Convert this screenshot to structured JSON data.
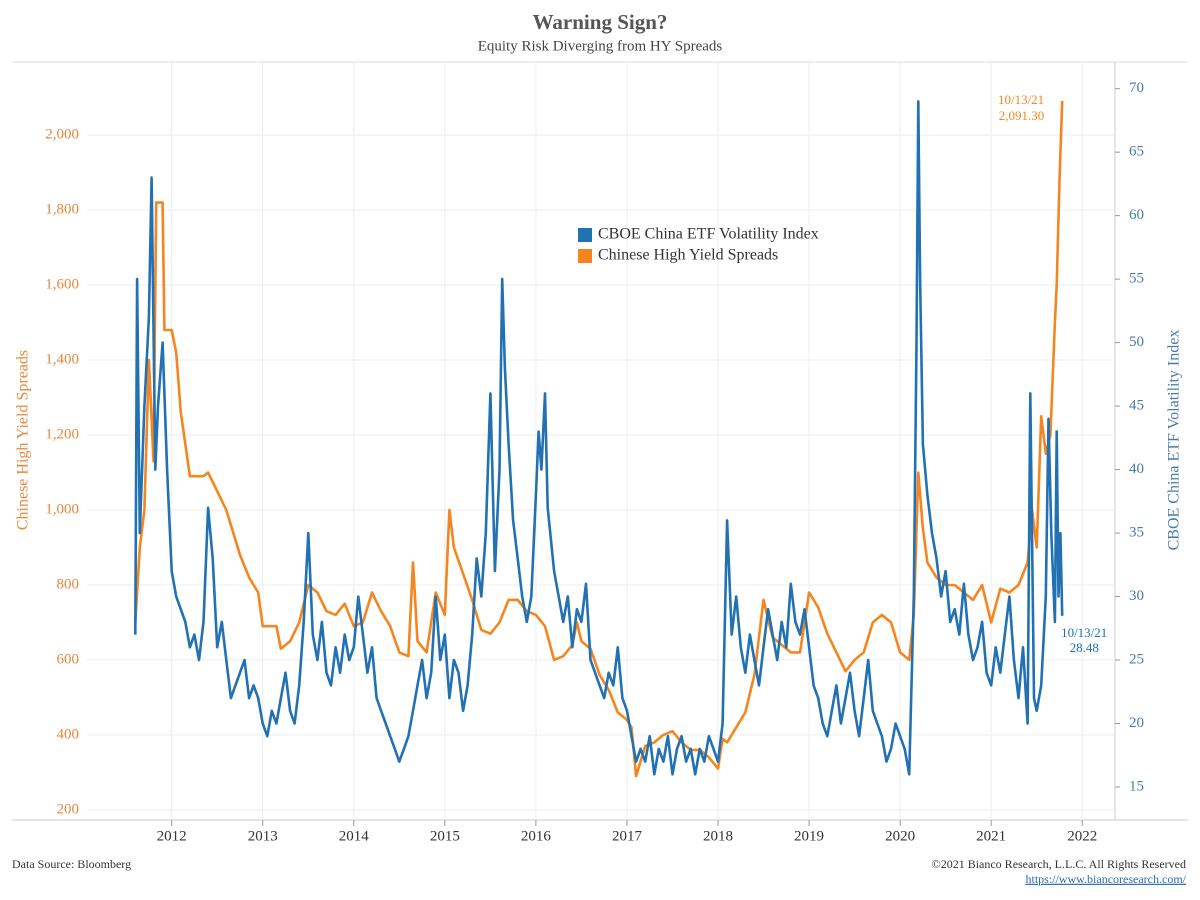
{
  "chart_data": {
    "type": "line",
    "title": "Warning Sign?",
    "subtitle": "Equity Risk Diverging from HY Spreads",
    "ylabel": "Chinese High Yield Spreads",
    "y2label": "CBOE China ETF Volatility Index",
    "xlim": [
      2011.07,
      2022.36
    ],
    "xticks": [
      2012,
      2013,
      2014,
      2015,
      2016,
      2017,
      2018,
      2019,
      2020,
      2021,
      2022
    ],
    "ylim": [
      173,
      2195
    ],
    "yticks": [
      200,
      400,
      600,
      800,
      {
        "value": 1000,
        "label": "1,000"
      },
      {
        "value": 1200,
        "label": "1,200"
      },
      {
        "value": 1400,
        "label": "1,400"
      },
      {
        "value": 1600,
        "label": "1,600"
      },
      {
        "value": 1800,
        "label": "1,800"
      },
      {
        "value": 2000,
        "label": "2,000"
      }
    ],
    "y2lim": [
      12.4,
      72.1
    ],
    "y2ticks": [
      15,
      20,
      25,
      30,
      35,
      40,
      45,
      50,
      55,
      60,
      65,
      70
    ],
    "grid": true,
    "legend": "top-center",
    "series": [
      {
        "name": "CBOE China ETF Volatility Index",
        "color": "#2271b3",
        "axis": "y2",
        "x": [
          2011.6,
          2011.62,
          2011.65,
          2011.7,
          2011.75,
          2011.78,
          2011.82,
          2011.85,
          2011.9,
          2011.95,
          2012.0,
          2012.05,
          2012.1,
          2012.15,
          2012.2,
          2012.25,
          2012.3,
          2012.35,
          2012.4,
          2012.45,
          2012.5,
          2012.55,
          2012.6,
          2012.65,
          2012.7,
          2012.75,
          2012.8,
          2012.85,
          2012.9,
          2012.95,
          2013.0,
          2013.05,
          2013.1,
          2013.15,
          2013.2,
          2013.25,
          2013.3,
          2013.35,
          2013.4,
          2013.45,
          2013.5,
          2013.55,
          2013.6,
          2013.65,
          2013.7,
          2013.75,
          2013.8,
          2013.85,
          2013.9,
          2013.95,
          2014.0,
          2014.05,
          2014.1,
          2014.15,
          2014.2,
          2014.25,
          2014.3,
          2014.35,
          2014.4,
          2014.45,
          2014.5,
          2014.55,
          2014.6,
          2014.65,
          2014.7,
          2014.75,
          2014.8,
          2014.85,
          2014.9,
          2014.95,
          2015.0,
          2015.05,
          2015.1,
          2015.15,
          2015.2,
          2015.25,
          2015.3,
          2015.35,
          2015.4,
          2015.45,
          2015.5,
          2015.55,
          2015.6,
          2015.63,
          2015.66,
          2015.7,
          2015.75,
          2015.8,
          2015.85,
          2015.9,
          2015.95,
          2016.0,
          2016.03,
          2016.06,
          2016.1,
          2016.13,
          2016.2,
          2016.25,
          2016.3,
          2016.35,
          2016.4,
          2016.45,
          2016.5,
          2016.55,
          2016.6,
          2016.65,
          2016.7,
          2016.75,
          2016.8,
          2016.85,
          2016.9,
          2016.95,
          2017.0,
          2017.05,
          2017.1,
          2017.15,
          2017.2,
          2017.25,
          2017.3,
          2017.35,
          2017.4,
          2017.45,
          2017.5,
          2017.55,
          2017.6,
          2017.65,
          2017.7,
          2017.75,
          2017.8,
          2017.85,
          2017.9,
          2017.95,
          2018.0,
          2018.05,
          2018.1,
          2018.15,
          2018.2,
          2018.25,
          2018.3,
          2018.35,
          2018.4,
          2018.45,
          2018.5,
          2018.55,
          2018.6,
          2018.65,
          2018.7,
          2018.75,
          2018.8,
          2018.85,
          2018.9,
          2018.95,
          2019.0,
          2019.05,
          2019.1,
          2019.15,
          2019.2,
          2019.25,
          2019.3,
          2019.35,
          2019.4,
          2019.45,
          2019.5,
          2019.55,
          2019.6,
          2019.65,
          2019.7,
          2019.75,
          2019.8,
          2019.85,
          2019.9,
          2019.95,
          2020.0,
          2020.05,
          2020.1,
          2020.15,
          2020.18,
          2020.2,
          2020.22,
          2020.25,
          2020.3,
          2020.35,
          2020.4,
          2020.45,
          2020.5,
          2020.55,
          2020.6,
          2020.65,
          2020.7,
          2020.75,
          2020.8,
          2020.85,
          2020.9,
          2020.95,
          2021.0,
          2021.05,
          2021.1,
          2021.15,
          2021.2,
          2021.25,
          2021.3,
          2021.35,
          2021.4,
          2021.43,
          2021.47,
          2021.5,
          2021.55,
          2021.6,
          2021.63,
          2021.66,
          2021.7,
          2021.72,
          2021.74,
          2021.76,
          2021.78
        ],
        "values": [
          27,
          55,
          35,
          45,
          52,
          63,
          40,
          45,
          50,
          40,
          32,
          30,
          29,
          28,
          26,
          27,
          25,
          28,
          37,
          33,
          26,
          28,
          25,
          22,
          23,
          24,
          25,
          22,
          23,
          22,
          20,
          19,
          21,
          20,
          22,
          24,
          21,
          20,
          23,
          28,
          35,
          27,
          25,
          28,
          24,
          23,
          26,
          24,
          27,
          25,
          26,
          30,
          27,
          24,
          26,
          22,
          21,
          20,
          19,
          18,
          17,
          18,
          19,
          21,
          23,
          25,
          22,
          24,
          30,
          25,
          27,
          22,
          25,
          24,
          21,
          23,
          27,
          33,
          30,
          35,
          46,
          32,
          40,
          55,
          48,
          42,
          36,
          33,
          30,
          28,
          30,
          38,
          43,
          40,
          46,
          37,
          32,
          30,
          28,
          30,
          26,
          29,
          28,
          31,
          25,
          24,
          23,
          22,
          24,
          23,
          26,
          22,
          21,
          19,
          17,
          18,
          17,
          19,
          16,
          18,
          17,
          19,
          16,
          18,
          19,
          17,
          18,
          16,
          18,
          17,
          19,
          18,
          17,
          20,
          36,
          27,
          30,
          26,
          24,
          27,
          25,
          23,
          26,
          29,
          27,
          25,
          28,
          26,
          31,
          28,
          27,
          29,
          26,
          23,
          22,
          20,
          19,
          21,
          23,
          20,
          22,
          24,
          21,
          19,
          22,
          25,
          21,
          20,
          19,
          17,
          18,
          20,
          19,
          18,
          16,
          30,
          50,
          69,
          55,
          42,
          38,
          35,
          33,
          30,
          32,
          28,
          29,
          27,
          31,
          27,
          25,
          26,
          28,
          24,
          23,
          26,
          24,
          27,
          30,
          25,
          22,
          26,
          20,
          46,
          22,
          21,
          23,
          30,
          44,
          35,
          28,
          43,
          30,
          35,
          28.48
        ]
      },
      {
        "name": "Chinese High Yield Spreads",
        "color": "#f5861f",
        "x": [
          2011.6,
          2011.65,
          2011.7,
          2011.75,
          2011.8,
          2011.83,
          2011.9,
          2011.92,
          2012.0,
          2012.05,
          2012.1,
          2012.2,
          2012.35,
          2012.4,
          2012.5,
          2012.6,
          2012.65,
          2012.75,
          2012.85,
          2012.95,
          2013.0,
          2013.15,
          2013.2,
          2013.3,
          2013.4,
          2013.5,
          2013.6,
          2013.7,
          2013.8,
          2013.9,
          2014.0,
          2014.1,
          2014.2,
          2014.3,
          2014.4,
          2014.5,
          2014.6,
          2014.65,
          2014.7,
          2014.8,
          2014.9,
          2015.0,
          2015.05,
          2015.1,
          2015.2,
          2015.3,
          2015.4,
          2015.5,
          2015.6,
          2015.7,
          2015.8,
          2015.9,
          2016.0,
          2016.1,
          2016.2,
          2016.3,
          2016.4,
          2016.45,
          2016.5,
          2016.6,
          2016.7,
          2016.8,
          2016.9,
          2017.0,
          2017.05,
          2017.1,
          2017.2,
          2017.3,
          2017.4,
          2017.5,
          2017.6,
          2017.7,
          2017.8,
          2017.9,
          2018.0,
          2018.05,
          2018.1,
          2018.2,
          2018.3,
          2018.4,
          2018.5,
          2018.6,
          2018.7,
          2018.8,
          2018.9,
          2019.0,
          2019.1,
          2019.2,
          2019.3,
          2019.4,
          2019.5,
          2019.6,
          2019.7,
          2019.8,
          2019.9,
          2020.0,
          2020.1,
          2020.15,
          2020.2,
          2020.25,
          2020.3,
          2020.4,
          2020.5,
          2020.6,
          2020.7,
          2020.8,
          2020.9,
          2021.0,
          2021.1,
          2021.2,
          2021.3,
          2021.4,
          2021.45,
          2021.5,
          2021.55,
          2021.6,
          2021.65,
          2021.7,
          2021.72,
          2021.75,
          2021.78
        ],
        "values": [
          700,
          900,
          1000,
          1400,
          1130,
          1820,
          1820,
          1480,
          1480,
          1420,
          1260,
          1090,
          1090,
          1100,
          1050,
          1000,
          960,
          880,
          820,
          780,
          690,
          690,
          630,
          650,
          700,
          800,
          780,
          730,
          720,
          750,
          690,
          700,
          780,
          730,
          690,
          620,
          610,
          860,
          650,
          620,
          780,
          720,
          1000,
          900,
          830,
          760,
          680,
          670,
          700,
          760,
          760,
          730,
          720,
          690,
          600,
          610,
          640,
          700,
          650,
          630,
          560,
          520,
          460,
          440,
          420,
          290,
          370,
          380,
          400,
          410,
          380,
          360,
          360,
          340,
          310,
          390,
          380,
          420,
          460,
          560,
          760,
          660,
          640,
          620,
          620,
          780,
          740,
          670,
          620,
          570,
          600,
          620,
          700,
          720,
          700,
          620,
          600,
          720,
          1100,
          950,
          860,
          820,
          800,
          800,
          780,
          760,
          800,
          700,
          790,
          780,
          800,
          860,
          1000,
          900,
          1250,
          1150,
          1200,
          1500,
          1600,
          1880,
          2091.3
        ]
      }
    ],
    "annotations": [
      {
        "series": 1,
        "lines": [
          "10/13/21",
          "2,091.30"
        ]
      },
      {
        "series": 0,
        "lines": [
          "10/13/21",
          "28.48"
        ]
      }
    ],
    "source": "Data Source: Bloomberg",
    "copyright": "©2021 Bianco Research, L.L.C. All Rights Reserved",
    "url": "https://www.biancoresearch.com/"
  }
}
